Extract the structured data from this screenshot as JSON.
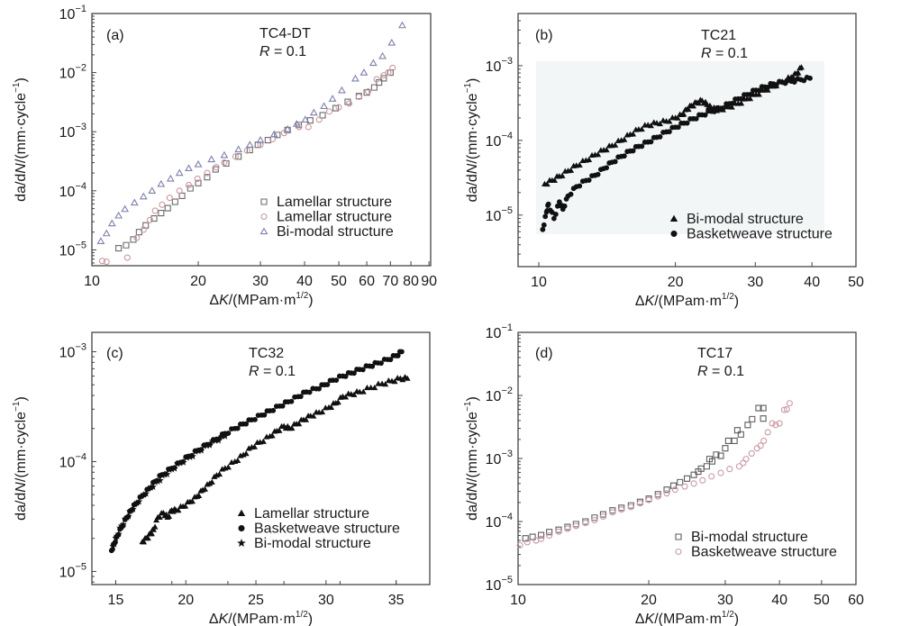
{
  "figure": {
    "background": "#ffffff",
    "axis_color": "#444444"
  },
  "chart_data": [
    {
      "id": "a",
      "type": "scatter",
      "panel_label": "(a)",
      "title": "TC4-DT",
      "subtitle": "R = 0.1",
      "xlabel": "ΔK/(MPam·m1/2)",
      "ylabel": "da/dN/(mm·cycle-1)",
      "xscale": "log",
      "yscale": "log",
      "xlim": [
        10,
        91
      ],
      "ylim": [
        5.4e-06,
        0.1
      ],
      "xticks": [
        10,
        20,
        30,
        40,
        50,
        60,
        70,
        80,
        90
      ],
      "xtick_labels": [
        "10",
        "20",
        "30",
        "40",
        "50",
        "60",
        "70",
        "80",
        "90"
      ],
      "yticks": [
        1e-05,
        0.0001,
        0.001,
        0.01,
        0.1
      ],
      "ytick_labels": [
        "-5",
        "-4",
        "-3",
        "-2",
        "-1"
      ],
      "legend_position": "bottom-right",
      "grid": false,
      "series": [
        {
          "name": "Lamellar structure",
          "marker": "square-open",
          "color": "#6b6b6b",
          "x": [
            11.9,
            12.5,
            13.1,
            13.6,
            14.2,
            15.0,
            15.7,
            16.4,
            17.2,
            18.0,
            19.0,
            20.0,
            21.2,
            22.4,
            24.0,
            26.0,
            28.0,
            29.5,
            31.5,
            33.5,
            35.8,
            38.5,
            41.5,
            45.0,
            49.0,
            53.0,
            57.0,
            60.0,
            63.0,
            65.0,
            67.0,
            70.0
          ],
          "y": [
            1.07e-05,
            1.2e-05,
            1.5e-05,
            2e-05,
            2.6e-05,
            3.4e-05,
            4.2e-05,
            5.1e-05,
            6.5e-05,
            8.2e-05,
            0.00011,
            0.000135,
            0.00017,
            0.00023,
            0.00029,
            0.00038,
            0.00049,
            0.0006,
            0.00072,
            0.00088,
            0.00107,
            0.0013,
            0.00155,
            0.0019,
            0.0025,
            0.0032,
            0.004,
            0.0046,
            0.0056,
            0.0068,
            0.008,
            0.01
          ]
        },
        {
          "name": "Lamellar structure",
          "marker": "circle-open",
          "color": "#c9979f",
          "x": [
            10.7,
            11.0,
            12.6,
            13.4,
            14.0,
            14.6,
            15.1,
            15.8,
            16.6,
            17.7,
            18.8,
            19.9,
            21.2,
            22.5,
            23.7,
            25.5,
            27.5,
            30.0,
            32.5,
            35.0,
            38.6,
            41.0,
            44.0,
            47.0,
            50.0,
            53.5,
            57.0,
            60.5,
            64.0,
            67.0,
            69.0,
            71.0
          ],
          "y": [
            6.5e-06,
            6.3e-06,
            7.4e-06,
            1.6e-05,
            2.2e-05,
            3.2e-05,
            4.6e-05,
            5.8e-05,
            7.6e-05,
            0.0001,
            0.000125,
            0.00016,
            0.0002,
            0.00025,
            0.0003,
            0.00038,
            0.00048,
            0.0006,
            0.00075,
            0.00095,
            0.0012,
            0.0012,
            0.0016,
            0.0022,
            0.0026,
            0.003,
            0.0039,
            0.0048,
            0.0077,
            0.009,
            0.01,
            0.012
          ]
        },
        {
          "name": "Bi-modal structure",
          "marker": "triangle-open",
          "color": "#7f7fae",
          "x": [
            10.6,
            11.0,
            11.4,
            11.9,
            12.4,
            13.2,
            14.0,
            14.8,
            15.7,
            16.7,
            17.7,
            18.8,
            20.0,
            21.8,
            23.7,
            26.0,
            28.0,
            30.0,
            32.8,
            35.8,
            38.0,
            40.2,
            42.5,
            45.4,
            48.0,
            51.0,
            55.7,
            58.9,
            62.6,
            66.5,
            70.6,
            75.6
          ],
          "y": [
            1.4e-05,
            1.9e-05,
            2.8e-05,
            3.8e-05,
            4.9e-05,
            6.3e-05,
            8e-05,
            0.0001,
            0.00013,
            0.00016,
            0.0002,
            0.00024,
            0.00028,
            0.00034,
            0.0004,
            0.0005,
            0.0006,
            0.00072,
            0.0009,
            0.0011,
            0.00135,
            0.0016,
            0.0021,
            0.0027,
            0.0036,
            0.005,
            0.0079,
            0.01,
            0.0145,
            0.019,
            0.032,
            0.063
          ]
        }
      ]
    },
    {
      "id": "b",
      "type": "scatter",
      "panel_label": "(b)",
      "title": "TC21",
      "subtitle": "R = 0.1",
      "xlabel": "ΔK/(MPam·m1/2)",
      "ylabel": "da/dN/(mm·cycle-1)",
      "xscale": "log",
      "yscale": "log",
      "xlim": [
        9.0,
        50
      ],
      "ylim": [
        2.04e-06,
        0.005
      ],
      "xticks": [
        10,
        20,
        30,
        40,
        50
      ],
      "xtick_labels": [
        "10",
        "20",
        "30",
        "40",
        "50"
      ],
      "yticks": [
        1e-05,
        0.0001,
        0.001
      ],
      "ytick_labels": [
        "-5",
        "-4",
        "-3"
      ],
      "legend_position": "bottom-right",
      "grid": false,
      "series": [
        {
          "name": "Bi-modal structure",
          "marker": "triangle-filled",
          "color": "#111111",
          "x": [
            10.3,
            10.7,
            11.1,
            11.6,
            12.1,
            12.7,
            13.3,
            13.9,
            14.5,
            15.2,
            15.9,
            16.6,
            17.4,
            18.2,
            19.1,
            20.0,
            20.7,
            21.2,
            21.7,
            22.3,
            22.9,
            23.5,
            24.0,
            24.5,
            25.1,
            26.2,
            27.5,
            28.8,
            30.1,
            31.5,
            32.9,
            34.4,
            36.0,
            37.0,
            37.9
          ],
          "y": [
            2.6e-05,
            2.9e-05,
            3.3e-05,
            3.9e-05,
            4.6e-05,
            5.4e-05,
            6.4e-05,
            7.4e-05,
            8.5e-05,
            0.0001,
            0.00012,
            0.00014,
            0.00016,
            0.00017,
            0.00018,
            0.0002,
            0.00022,
            0.00026,
            0.00029,
            0.00032,
            0.00034,
            0.0003,
            0.00027,
            0.00026,
            0.00026,
            0.00028,
            0.00031,
            0.00036,
            0.00041,
            0.00047,
            0.00053,
            0.00061,
            0.0007,
            0.00078,
            0.00095
          ]
        },
        {
          "name": "Basketweave structure",
          "marker": "circle-filled",
          "color": "#111111",
          "x": [
            10.2,
            10.4,
            10.5,
            10.8,
            11.1,
            11.3,
            11.6,
            12.1,
            12.7,
            13.3,
            13.9,
            14.5,
            15.2,
            15.9,
            16.6,
            17.4,
            18.2,
            19.1,
            20.0,
            20.9,
            21.9,
            22.9,
            24.0,
            25.1,
            26.3,
            27.5,
            28.8,
            30.1,
            31.5,
            32.9,
            34.4,
            36.0,
            37.8,
            39.6
          ],
          "y": [
            6.4e-06,
            1.1e-05,
            1.4e-05,
            9e-06,
            1.5e-05,
            1.2e-05,
            1.8e-05,
            2.4e-05,
            2.9e-05,
            3.4e-05,
            4.2e-05,
            5.1e-05,
            6.1e-05,
            7.2e-05,
            8.3e-05,
            9.5e-05,
            0.00011,
            0.00013,
            0.00015,
            0.00017,
            0.000195,
            0.00022,
            0.000245,
            0.00027,
            0.00031,
            0.00036,
            0.00041,
            0.00047,
            0.00052,
            0.00057,
            0.0006,
            0.00062,
            0.00065,
            0.00068
          ]
        }
      ]
    },
    {
      "id": "c",
      "type": "scatter",
      "panel_label": "(c)",
      "title": "TC32",
      "subtitle": "R = 0.1",
      "xlabel": "ΔK/(MPam·m1/2)",
      "ylabel": "da/dN/(mm·cycle-1)",
      "xscale": "linear",
      "yscale": "log",
      "xlim": [
        13.3,
        37.4
      ],
      "ylim": [
        7.6e-06,
        0.0015
      ],
      "xticks": [
        15,
        20,
        25,
        30,
        35
      ],
      "xtick_labels": [
        "15",
        "20",
        "25",
        "30",
        "35"
      ],
      "yticks": [
        1e-05,
        0.0001,
        0.001
      ],
      "ytick_labels": [
        "-5",
        "-4",
        "-3"
      ],
      "legend_position": "bottom-right",
      "grid": false,
      "series": [
        {
          "name": "Lamellar structure",
          "marker": "triangle-filled",
          "color": "#111111",
          "x": [
            16.9,
            17.2,
            17.5,
            17.7,
            18.0,
            18.4,
            18.7,
            19.0,
            19.3,
            19.8,
            20.3,
            20.8,
            21.2,
            21.7,
            22.2,
            22.8,
            23.5,
            24.1,
            24.7,
            25.3,
            26.0,
            26.5,
            27.0,
            27.4,
            27.9,
            28.4,
            28.9,
            29.5,
            30.2,
            30.7,
            31.2,
            31.8,
            32.4,
            33.2,
            34.0,
            34.7,
            35.3,
            35.8
          ],
          "y": [
            1.86e-05,
            2e-05,
            2.2e-05,
            2.4e-05,
            3.1e-05,
            3.4e-05,
            3.1e-05,
            3.6e-05,
            3.6e-05,
            3.9e-05,
            4.3e-05,
            4.8e-05,
            5.5e-05,
            6.3e-05,
            7.5e-05,
            8.7e-05,
            0.0001,
            0.000115,
            0.000135,
            0.00015,
            0.00017,
            0.00019,
            0.00021,
            0.0002,
            0.00022,
            0.00024,
            0.00026,
            0.00028,
            0.00031,
            0.00034,
            0.00039,
            0.00041,
            0.00043,
            0.00047,
            0.00051,
            0.00054,
            0.00057,
            0.00057
          ]
        },
        {
          "name": "Basketweave structure",
          "marker": "circle-filled",
          "color": "#111111",
          "x": [
            14.7,
            14.9,
            15.1,
            15.4,
            15.8,
            16.1,
            16.4,
            16.9,
            17.4,
            17.8,
            18.3,
            19.0,
            19.6,
            20.2,
            20.9,
            21.5,
            22.2,
            22.8,
            23.5,
            24.1,
            24.7,
            25.4,
            26.0,
            26.7,
            27.3,
            28.0,
            28.6,
            29.3,
            29.9,
            30.5,
            31.2,
            31.8,
            32.4,
            33.1,
            33.7,
            34.4,
            35.0,
            35.4
          ],
          "y": [
            1.55e-05,
            1.8e-05,
            2.1e-05,
            2.5e-05,
            3.1e-05,
            3.6e-05,
            4.1e-05,
            4.9e-05,
            5.7e-05,
            6.6e-05,
            7.6e-05,
            8.7e-05,
            9.8e-05,
            0.000112,
            0.000127,
            0.000143,
            0.00016,
            0.00018,
            0.0002,
            0.00022,
            0.00024,
            0.000265,
            0.00029,
            0.00032,
            0.00035,
            0.00039,
            0.00043,
            0.00046,
            0.0005,
            0.00055,
            0.0006,
            0.00064,
            0.00069,
            0.00074,
            0.00079,
            0.00085,
            0.00092,
            0.001
          ]
        },
        {
          "name": "Bi-modal structure",
          "marker": "star-filled",
          "color": "#111111",
          "x": [
            14.8,
            15.1,
            15.4,
            15.8,
            16.1,
            16.5,
            17.0,
            17.5,
            18.0,
            18.5,
            19.0,
            19.6,
            20.3,
            20.9,
            21.5,
            22.1,
            22.8
          ],
          "y": [
            1.7e-05,
            2.1e-05,
            2.6e-05,
            3.1e-05,
            3.6e-05,
            4.2e-05,
            5e-05,
            5.8e-05,
            6.6e-05,
            7.6e-05,
            8.5e-05,
            9.7e-05,
            0.00011,
            0.000125,
            0.00014,
            0.000155,
            0.00017
          ]
        }
      ]
    },
    {
      "id": "d",
      "type": "scatter",
      "panel_label": "(d)",
      "title": "TC17",
      "subtitle": "R = 0.1",
      "xlabel": "ΔK/(MPam·m1/2)",
      "ylabel": "da/dN/(mm·cycle-1)",
      "xscale": "log",
      "yscale": "log",
      "xlim": [
        10,
        60
      ],
      "ylim": [
        1e-05,
        0.1
      ],
      "xticks": [
        10,
        20,
        30,
        40,
        50,
        60
      ],
      "xtick_labels": [
        "10",
        "20",
        "30",
        "40",
        "50",
        "60"
      ],
      "yticks": [
        1e-05,
        0.0001,
        0.001,
        0.01,
        0.1
      ],
      "ytick_labels": [
        "-5",
        "-4",
        "-3",
        "-2",
        "-1"
      ],
      "legend_position": "bottom-right",
      "grid": false,
      "series": [
        {
          "name": "Bi-modal structure",
          "marker": "square-open",
          "color": "#5e5e5e",
          "x": [
            10.4,
            10.8,
            11.3,
            11.8,
            12.4,
            13.0,
            13.6,
            14.3,
            15.0,
            15.7,
            16.5,
            17.3,
            18.2,
            19.1,
            20.0,
            21.0,
            22.0,
            22.8,
            23.6,
            24.5,
            25.4,
            26.0,
            26.4,
            27.2,
            27.6,
            28.0,
            28.6,
            29.3,
            30.0,
            30.5,
            31.5,
            32.0,
            32.6,
            33.8,
            34.6,
            35.8,
            36.7
          ],
          "y": [
            5.4e-05,
            5.7e-05,
            6.1e-05,
            6.8e-05,
            7.4e-05,
            8.2e-05,
            9.1e-05,
            0.0001,
            0.000115,
            0.00013,
            0.00015,
            0.000165,
            0.00018,
            0.000205,
            0.00023,
            0.00027,
            0.00032,
            0.00037,
            0.00042,
            0.00048,
            0.00055,
            0.00062,
            0.00069,
            0.00075,
            0.00098,
            0.0009,
            0.00115,
            0.0011,
            0.00145,
            0.0019,
            0.0019,
            0.0028,
            0.0024,
            0.0034,
            0.0042,
            0.0063,
            0.0063
          ],
          "extra_points": [
            [
              36.7,
              0.0043
            ]
          ]
        },
        {
          "name": "Basketweave structure",
          "marker": "circle-open",
          "color": "#c99aa4",
          "x": [
            10.1,
            10.5,
            11.0,
            11.3,
            11.8,
            12.4,
            13.0,
            13.6,
            14.3,
            15.0,
            15.7,
            16.5,
            17.3,
            18.2,
            19.1,
            20.0,
            21.0,
            22.0,
            23.0,
            24.2,
            25.4,
            26.6,
            27.9,
            29.3,
            30.7,
            32.3,
            33.0,
            33.5,
            34.5,
            35.5,
            36.2,
            36.8,
            37.6,
            38.5,
            39.2,
            40.0,
            41.0,
            41.6,
            42.2
          ],
          "y": [
            4.2e-05,
            4.7e-05,
            5e-05,
            5.3e-05,
            6e-05,
            6.9e-05,
            7.7e-05,
            8.5e-05,
            9.5e-05,
            0.000105,
            0.00012,
            0.00014,
            0.000155,
            0.00017,
            0.000195,
            0.00022,
            0.00025,
            0.00028,
            0.00032,
            0.00036,
            0.0004,
            0.00045,
            0.00052,
            0.00059,
            0.00068,
            0.00075,
            0.00085,
            0.00098,
            0.0012,
            0.00145,
            0.0016,
            0.0019,
            0.0026,
            0.0036,
            0.0034,
            0.0036,
            0.0059,
            0.006,
            0.0075
          ]
        }
      ]
    }
  ]
}
